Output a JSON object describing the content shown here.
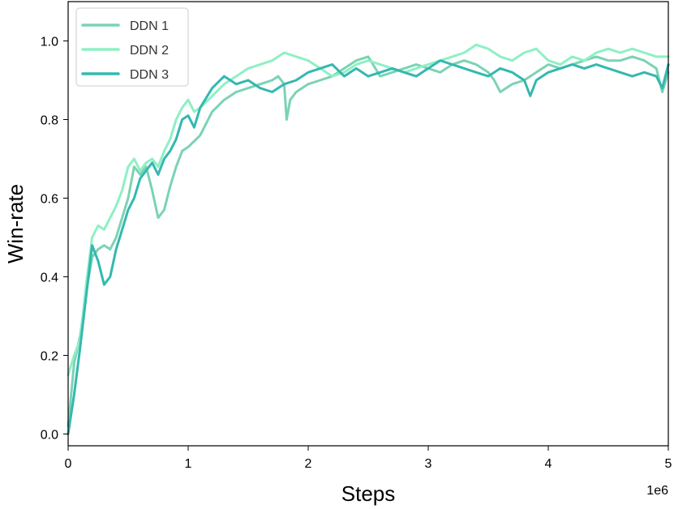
{
  "chart_data": {
    "type": "line",
    "xlabel": "Steps",
    "ylabel": "Win-rate",
    "x_offset_label": "1e6",
    "xlim": [
      0,
      5
    ],
    "ylim": [
      -0.03,
      1.1
    ],
    "x_ticks": [
      0,
      1,
      2,
      3,
      4,
      5
    ],
    "y_ticks": [
      0.0,
      0.2,
      0.4,
      0.6,
      0.8,
      1.0
    ],
    "grid": false,
    "legend_position": "top-left",
    "series": [
      {
        "name": "DDN 1",
        "color": "#7bd3b4",
        "x": [
          0.0,
          0.05,
          0.1,
          0.15,
          0.2,
          0.25,
          0.3,
          0.35,
          0.4,
          0.45,
          0.5,
          0.55,
          0.6,
          0.65,
          0.7,
          0.75,
          0.8,
          0.85,
          0.9,
          0.95,
          1.0,
          1.1,
          1.2,
          1.3,
          1.4,
          1.5,
          1.6,
          1.7,
          1.75,
          1.8,
          1.82,
          1.85,
          1.9,
          2.0,
          2.1,
          2.2,
          2.3,
          2.4,
          2.5,
          2.6,
          2.7,
          2.8,
          2.9,
          3.0,
          3.1,
          3.2,
          3.3,
          3.4,
          3.5,
          3.55,
          3.6,
          3.7,
          3.8,
          3.9,
          4.0,
          4.1,
          4.2,
          4.3,
          4.4,
          4.5,
          4.6,
          4.7,
          4.8,
          4.9,
          4.95,
          5.0
        ],
        "y": [
          0.02,
          0.18,
          0.25,
          0.36,
          0.45,
          0.47,
          0.48,
          0.47,
          0.5,
          0.55,
          0.6,
          0.68,
          0.66,
          0.68,
          0.62,
          0.55,
          0.57,
          0.63,
          0.68,
          0.72,
          0.73,
          0.76,
          0.82,
          0.85,
          0.87,
          0.88,
          0.89,
          0.9,
          0.91,
          0.89,
          0.8,
          0.85,
          0.87,
          0.89,
          0.9,
          0.91,
          0.93,
          0.95,
          0.96,
          0.91,
          0.92,
          0.93,
          0.94,
          0.93,
          0.92,
          0.94,
          0.95,
          0.94,
          0.92,
          0.9,
          0.87,
          0.89,
          0.9,
          0.92,
          0.94,
          0.93,
          0.94,
          0.95,
          0.96,
          0.95,
          0.95,
          0.96,
          0.95,
          0.93,
          0.87,
          0.92
        ]
      },
      {
        "name": "DDN 2",
        "color": "#8ef0c4",
        "x": [
          0.0,
          0.05,
          0.1,
          0.15,
          0.2,
          0.25,
          0.3,
          0.35,
          0.4,
          0.45,
          0.5,
          0.55,
          0.6,
          0.65,
          0.7,
          0.75,
          0.8,
          0.85,
          0.9,
          0.95,
          1.0,
          1.05,
          1.1,
          1.2,
          1.3,
          1.4,
          1.5,
          1.6,
          1.7,
          1.8,
          1.9,
          2.0,
          2.1,
          2.2,
          2.3,
          2.4,
          2.5,
          2.6,
          2.7,
          2.8,
          2.9,
          3.0,
          3.1,
          3.2,
          3.3,
          3.4,
          3.5,
          3.6,
          3.7,
          3.8,
          3.9,
          4.0,
          4.1,
          4.2,
          4.3,
          4.4,
          4.5,
          4.6,
          4.7,
          4.8,
          4.9,
          5.0
        ],
        "y": [
          0.15,
          0.2,
          0.24,
          0.38,
          0.5,
          0.53,
          0.52,
          0.55,
          0.58,
          0.62,
          0.68,
          0.7,
          0.67,
          0.69,
          0.7,
          0.68,
          0.72,
          0.75,
          0.8,
          0.83,
          0.85,
          0.82,
          0.83,
          0.86,
          0.89,
          0.91,
          0.93,
          0.94,
          0.95,
          0.97,
          0.96,
          0.95,
          0.93,
          0.91,
          0.92,
          0.94,
          0.95,
          0.94,
          0.93,
          0.92,
          0.93,
          0.94,
          0.95,
          0.96,
          0.97,
          0.99,
          0.98,
          0.96,
          0.95,
          0.97,
          0.98,
          0.95,
          0.94,
          0.96,
          0.95,
          0.97,
          0.98,
          0.97,
          0.98,
          0.97,
          0.96,
          0.96
        ]
      },
      {
        "name": "DDN 3",
        "color": "#34b8b0",
        "x": [
          0.0,
          0.05,
          0.1,
          0.15,
          0.2,
          0.25,
          0.3,
          0.35,
          0.4,
          0.45,
          0.5,
          0.55,
          0.6,
          0.65,
          0.7,
          0.75,
          0.8,
          0.85,
          0.9,
          0.95,
          1.0,
          1.05,
          1.1,
          1.2,
          1.3,
          1.4,
          1.5,
          1.6,
          1.7,
          1.8,
          1.9,
          2.0,
          2.1,
          2.2,
          2.3,
          2.4,
          2.5,
          2.6,
          2.7,
          2.8,
          2.9,
          3.0,
          3.1,
          3.2,
          3.3,
          3.4,
          3.5,
          3.6,
          3.7,
          3.8,
          3.85,
          3.9,
          4.0,
          4.1,
          4.2,
          4.3,
          4.4,
          4.5,
          4.6,
          4.7,
          4.8,
          4.9,
          4.95,
          5.0
        ],
        "y": [
          0.0,
          0.1,
          0.22,
          0.35,
          0.48,
          0.44,
          0.38,
          0.4,
          0.47,
          0.52,
          0.57,
          0.6,
          0.65,
          0.67,
          0.69,
          0.66,
          0.7,
          0.72,
          0.75,
          0.8,
          0.81,
          0.78,
          0.83,
          0.88,
          0.91,
          0.89,
          0.9,
          0.88,
          0.87,
          0.89,
          0.9,
          0.92,
          0.93,
          0.94,
          0.91,
          0.93,
          0.91,
          0.92,
          0.93,
          0.92,
          0.91,
          0.93,
          0.95,
          0.94,
          0.93,
          0.92,
          0.91,
          0.93,
          0.92,
          0.9,
          0.86,
          0.9,
          0.92,
          0.93,
          0.94,
          0.93,
          0.94,
          0.93,
          0.92,
          0.91,
          0.92,
          0.91,
          0.88,
          0.94
        ]
      }
    ]
  }
}
